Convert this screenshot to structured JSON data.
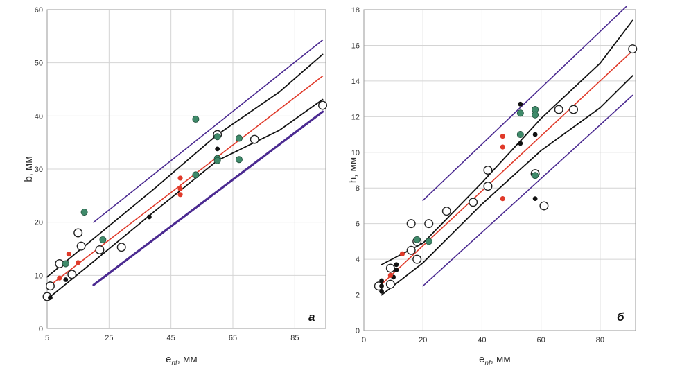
{
  "chart_data": [
    {
      "id": "a",
      "type": "scatter",
      "panel_label": "а",
      "xlabel": "e",
      "xlabel_sub": "nf",
      "xlabel_unit": "мм",
      "ylabel": "b, мм",
      "xlim": [
        5,
        95
      ],
      "ylim": [
        0,
        60
      ],
      "x_ticks": [
        5,
        25,
        45,
        65,
        85
      ],
      "y_ticks": [
        0,
        10,
        20,
        30,
        40,
        50,
        60
      ],
      "grid": true,
      "legend": "none",
      "colors": {
        "black": "#111111",
        "red": "#e03a2a",
        "teal": "#3f8a6a",
        "open": "#222222",
        "fit": "#e03a2a",
        "conf": "#111111",
        "pred": "#4b2a91"
      },
      "series": [
        {
          "style": "open",
          "points": [
            [
              5,
              6
            ],
            [
              6,
              8
            ],
            [
              9,
              12.2
            ],
            [
              13,
              10.2
            ],
            [
              15,
              18
            ],
            [
              16,
              15.5
            ],
            [
              22,
              14.8
            ],
            [
              29,
              15.3
            ],
            [
              60,
              36.5
            ],
            [
              72,
              35.6
            ],
            [
              94,
              42
            ]
          ]
        },
        {
          "style": "black",
          "points": [
            [
              6,
              5.8
            ],
            [
              11,
              9.2
            ],
            [
              38,
              21
            ],
            [
              60,
              33.8
            ]
          ]
        },
        {
          "style": "red",
          "points": [
            [
              9,
              9.5
            ],
            [
              12,
              14
            ],
            [
              15,
              12.4
            ],
            [
              48,
              28.3
            ],
            [
              48,
              26.3
            ],
            [
              48,
              25.2
            ]
          ]
        },
        {
          "style": "teal",
          "points": [
            [
              11,
              12.2
            ],
            [
              17,
              21.9
            ],
            [
              23,
              16.7
            ],
            [
              53,
              39.4
            ],
            [
              53,
              28.9
            ],
            [
              60,
              36.1
            ],
            [
              60,
              32
            ],
            [
              60,
              31.6
            ],
            [
              67,
              35.8
            ],
            [
              67,
              31.8
            ]
          ]
        }
      ],
      "lines": [
        {
          "style": "fit",
          "points": [
            [
              5,
              7.7
            ],
            [
              94,
              47.5
            ]
          ]
        },
        {
          "style": "conf",
          "points": [
            [
              5,
              9.7
            ],
            [
              20,
              16.9
            ],
            [
              40,
              26.5
            ],
            [
              60,
              36.5
            ],
            [
              80,
              44.5
            ],
            [
              94,
              51.6
            ]
          ]
        },
        {
          "style": "conf",
          "points": [
            [
              5,
              5.5
            ],
            [
              20,
              12.6
            ],
            [
              40,
              22.2
            ],
            [
              60,
              31.6
            ],
            [
              80,
              37.3
            ],
            [
              94,
              43.1
            ]
          ]
        },
        {
          "style": "pred",
          "points": [
            [
              20,
              20
            ],
            [
              94,
              54.3
            ]
          ]
        },
        {
          "style": "pred-thick",
          "points": [
            [
              20,
              8.2
            ],
            [
              94,
              40.8
            ]
          ]
        }
      ]
    },
    {
      "id": "b",
      "type": "scatter",
      "panel_label": "б",
      "xlabel": "e",
      "xlabel_sub": "nf",
      "xlabel_unit": "мм",
      "ylabel": "h, мм",
      "xlim": [
        0,
        92
      ],
      "ylim": [
        0,
        18
      ],
      "x_ticks": [
        0,
        20,
        40,
        60,
        80
      ],
      "y_ticks": [
        0,
        2,
        4,
        6,
        8,
        10,
        12,
        14,
        16,
        18
      ],
      "grid": true,
      "legend": "none",
      "colors": {
        "black": "#111111",
        "red": "#e03a2a",
        "teal": "#3f8a6a",
        "open": "#222222",
        "fit": "#e03a2a",
        "conf": "#111111",
        "pred": "#4b2a91"
      },
      "series": [
        {
          "style": "open",
          "points": [
            [
              5,
              2.5
            ],
            [
              9,
              3.5
            ],
            [
              9,
              2.6
            ],
            [
              16,
              6
            ],
            [
              16,
              4.5
            ],
            [
              18,
              4
            ],
            [
              18,
              5
            ],
            [
              22,
              6
            ],
            [
              28,
              6.7
            ],
            [
              37,
              7.2
            ],
            [
              42,
              9
            ],
            [
              42,
              8.1
            ],
            [
              58,
              8.8
            ],
            [
              61,
              7
            ],
            [
              66,
              12.4
            ],
            [
              71,
              12.4
            ],
            [
              91,
              15.8
            ]
          ]
        },
        {
          "style": "black",
          "points": [
            [
              6,
              2.8
            ],
            [
              6,
              2.5
            ],
            [
              6,
              2.2
            ],
            [
              10,
              3
            ],
            [
              11,
              3.4
            ],
            [
              11,
              3.7
            ],
            [
              53,
              12.7
            ],
            [
              53,
              10.5
            ],
            [
              58,
              11
            ],
            [
              58,
              7.4
            ]
          ]
        },
        {
          "style": "red",
          "points": [
            [
              9,
              3.1
            ],
            [
              13,
              4.3
            ],
            [
              47,
              10.9
            ],
            [
              47,
              10.3
            ],
            [
              47,
              7.4
            ]
          ]
        },
        {
          "style": "teal",
          "points": [
            [
              18,
              5.1
            ],
            [
              22,
              5
            ],
            [
              53,
              12.2
            ],
            [
              53,
              11
            ],
            [
              58,
              12.4
            ],
            [
              58,
              12.1
            ],
            [
              58,
              8.7
            ]
          ]
        }
      ],
      "lines": [
        {
          "style": "fit",
          "points": [
            [
              6,
              2.6
            ],
            [
              91,
              15.7
            ]
          ]
        },
        {
          "style": "conf",
          "points": [
            [
              6,
              3.7
            ],
            [
              20,
              4.9
            ],
            [
              40,
              8.3
            ],
            [
              60,
              11.9
            ],
            [
              80,
              15
            ],
            [
              91,
              17.4
            ]
          ]
        },
        {
          "style": "conf",
          "points": [
            [
              6,
              2
            ],
            [
              20,
              3.8
            ],
            [
              40,
              7.1
            ],
            [
              60,
              10.1
            ],
            [
              80,
              12.5
            ],
            [
              91,
              14.3
            ]
          ]
        },
        {
          "style": "pred",
          "points": [
            [
              20,
              7.3
            ],
            [
              89,
              18.2
            ]
          ]
        },
        {
          "style": "pred",
          "points": [
            [
              20,
              2.5
            ],
            [
              91,
              13.2
            ]
          ]
        }
      ]
    }
  ]
}
